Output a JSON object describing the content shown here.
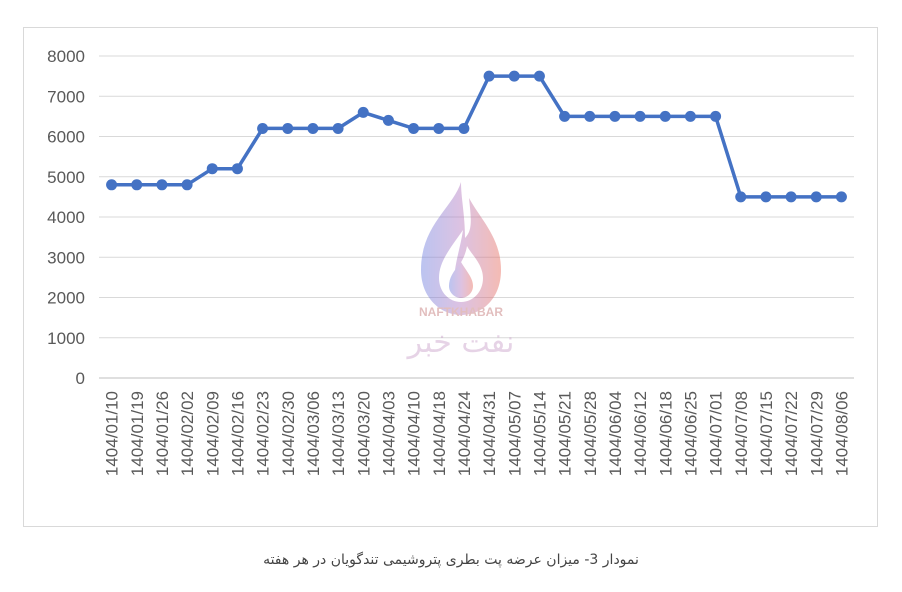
{
  "chart_data": {
    "type": "line",
    "title": "",
    "xlabel": "",
    "ylabel": "",
    "ylim": [
      0,
      8000
    ],
    "yticks": [
      0,
      1000,
      2000,
      3000,
      4000,
      5000,
      6000,
      7000,
      8000
    ],
    "grid": true,
    "legend": "none",
    "categories": [
      "1404/01/10",
      "1404/01/19",
      "1404/01/26",
      "1404/02/02",
      "1404/02/09",
      "1404/02/16",
      "1404/02/23",
      "1404/02/30",
      "1404/03/06",
      "1404/03/13",
      "1404/03/20",
      "1404/04/03",
      "1404/04/10",
      "1404/04/18",
      "1404/04/24",
      "1404/04/31",
      "1404/05/07",
      "1404/05/14",
      "1404/05/21",
      "1404/05/28",
      "1404/06/04",
      "1404/06/12",
      "1404/06/18",
      "1404/06/25",
      "1404/07/01",
      "1404/07/08",
      "1404/07/15",
      "1404/07/22",
      "1404/07/29",
      "1404/08/06"
    ],
    "series": [
      {
        "values": [
          4800,
          4800,
          4800,
          4800,
          5200,
          5200,
          6200,
          6200,
          6200,
          6200,
          6600,
          6400,
          6200,
          6200,
          6200,
          7500,
          7500,
          7500,
          6500,
          6500,
          6500,
          6500,
          6500,
          6500,
          6500,
          4500,
          4500,
          4500,
          4500,
          4500
        ]
      }
    ],
    "line_color": "#4472c4",
    "grid_color": "#d9d9d9",
    "axis_color": "#bfbfbf",
    "text_color": "#595959"
  },
  "watermark": {
    "latin_text": "NAFTKHABAR",
    "farsi_text": "نفت خبر",
    "colors": [
      "#6b7de0",
      "#e86a5a"
    ]
  },
  "caption": "نمودار 3- میزان عرضه پت بطری پتروشیمی تندگویان در هر هفته"
}
